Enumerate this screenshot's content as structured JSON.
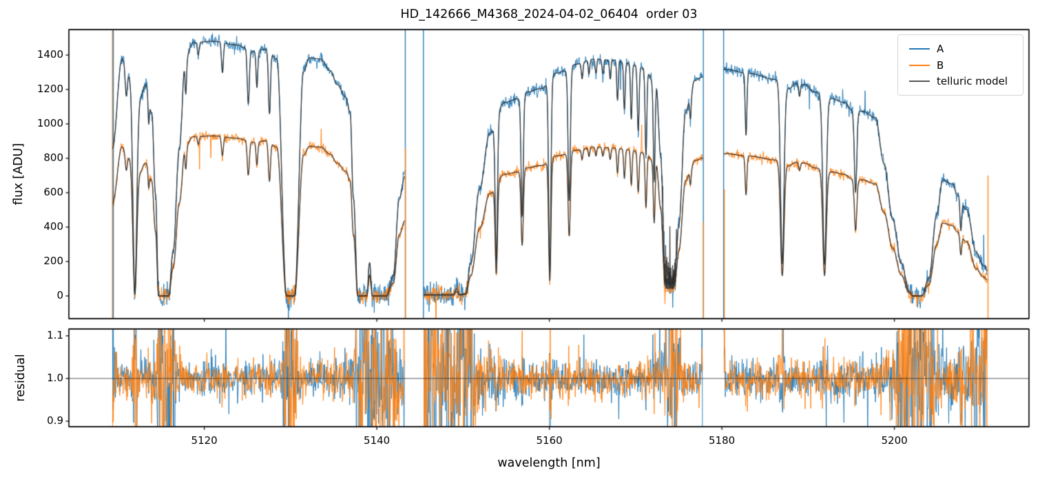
{
  "chart_data": {
    "type": "line",
    "title": "HD_142666_M4368_2024-04-02_06404  order 03",
    "xlabel": "wavelength [nm]",
    "ylabel_top": "flux [ADU]",
    "ylabel_bottom": "residual",
    "x_ticks": [
      5120,
      5140,
      5160,
      5180,
      5200
    ],
    "y_ticks_top": [
      0,
      200,
      400,
      600,
      800,
      1000,
      1200,
      1400
    ],
    "y_ticks_bottom": [
      0.9,
      1.0,
      1.1
    ],
    "xlim": [
      5104.3,
      5215.6
    ],
    "ylim_top": [
      -132,
      1548
    ],
    "ylim_bottom": [
      0.887,
      1.116
    ],
    "grid": false,
    "legend_position": "upper right",
    "series": [
      {
        "name": "A",
        "color": "#1f77b4",
        "continuum_scale_adu": 1480
      },
      {
        "name": "B",
        "color": "#ff7f0e",
        "continuum_scale_adu": 930
      },
      {
        "name": "telluric model",
        "color": "#555555"
      }
    ],
    "residual_reference_level": 1.0,
    "segments": [
      {
        "x_start": 5109.35,
        "x_end": 5143.25
      },
      {
        "x_start": 5145.45,
        "x_end": 5177.8
      },
      {
        "x_start": 5180.25,
        "x_end": 5210.8
      }
    ],
    "telluric_envelope": [
      [
        5109.35,
        0.58
      ],
      [
        5110.45,
        0.93
      ],
      [
        5111.3,
        0.87
      ],
      [
        5112.55,
        0.78
      ],
      [
        5113.2,
        0.83
      ],
      [
        5113.9,
        0.72
      ],
      [
        5114.35,
        0.4
      ],
      [
        5114.7,
        0.0
      ],
      [
        5115.85,
        0.0
      ],
      [
        5116.4,
        0.18
      ],
      [
        5117.1,
        0.58
      ],
      [
        5117.8,
        0.93
      ],
      [
        5118.7,
        0.995
      ],
      [
        5121.0,
        1.0
      ],
      [
        5124.0,
        0.985
      ],
      [
        5124.6,
        0.975
      ],
      [
        5125.6,
        0.96
      ],
      [
        5127.3,
        0.97
      ],
      [
        5128.4,
        0.93
      ],
      [
        5129.55,
        0.0
      ],
      [
        5130.45,
        0.0
      ],
      [
        5131.5,
        0.88
      ],
      [
        5132.2,
        0.935
      ],
      [
        5133.5,
        0.93
      ],
      [
        5134.6,
        0.885
      ],
      [
        5135.4,
        0.83
      ],
      [
        5136.4,
        0.78
      ],
      [
        5136.9,
        0.72
      ],
      [
        5137.3,
        0.38
      ],
      [
        5137.8,
        0.0
      ],
      [
        5138.85,
        0.0
      ],
      [
        5139.15,
        0.13
      ],
      [
        5139.5,
        0.0
      ],
      [
        5141.1,
        0.0
      ],
      [
        5141.9,
        0.08
      ],
      [
        5142.6,
        0.38
      ],
      [
        5143.25,
        0.47
      ],
      [
        5145.45,
        0.005
      ],
      [
        5148.9,
        0.005
      ],
      [
        5149.25,
        0.028
      ],
      [
        5149.6,
        0.005
      ],
      [
        5150.3,
        0.01
      ],
      [
        5150.9,
        0.13
      ],
      [
        5151.9,
        0.42
      ],
      [
        5153.1,
        0.64
      ],
      [
        5154.8,
        0.76
      ],
      [
        5156.4,
        0.775
      ],
      [
        5157.3,
        0.8
      ],
      [
        5159.1,
        0.815
      ],
      [
        5160.8,
        0.875
      ],
      [
        5162.0,
        0.885
      ],
      [
        5163.0,
        0.91
      ],
      [
        5165.2,
        0.93
      ],
      [
        5167.6,
        0.925
      ],
      [
        5169.0,
        0.915
      ],
      [
        5171.0,
        0.895
      ],
      [
        5172.4,
        0.82
      ],
      [
        5172.9,
        0.55
      ],
      [
        5173.4,
        0.04
      ],
      [
        5174.5,
        0.04
      ],
      [
        5175.0,
        0.28
      ],
      [
        5175.8,
        0.72
      ],
      [
        5176.3,
        0.77
      ],
      [
        5176.8,
        0.845
      ],
      [
        5177.8,
        0.86
      ],
      [
        5180.25,
        0.89
      ],
      [
        5183.0,
        0.875
      ],
      [
        5186.3,
        0.85
      ],
      [
        5187.8,
        0.815
      ],
      [
        5188.6,
        0.835
      ],
      [
        5189.6,
        0.83
      ],
      [
        5190.8,
        0.8
      ],
      [
        5192.7,
        0.775
      ],
      [
        5194.2,
        0.76
      ],
      [
        5195.1,
        0.73
      ],
      [
        5196.3,
        0.725
      ],
      [
        5197.8,
        0.7
      ],
      [
        5198.8,
        0.52
      ],
      [
        5199.8,
        0.3
      ],
      [
        5200.8,
        0.13
      ],
      [
        5201.7,
        0.02
      ],
      [
        5202.15,
        0.0
      ],
      [
        5203.15,
        0.0
      ],
      [
        5204.0,
        0.07
      ],
      [
        5204.9,
        0.32
      ],
      [
        5205.6,
        0.455
      ],
      [
        5206.7,
        0.44
      ],
      [
        5207.3,
        0.4
      ],
      [
        5208.35,
        0.34
      ],
      [
        5209.5,
        0.17
      ],
      [
        5210.3,
        0.12
      ],
      [
        5210.8,
        0.1
      ]
    ],
    "absorption_lines": [
      [
        5110.95,
        0.12,
        0.12
      ],
      [
        5111.95,
        0.99,
        0.22
      ],
      [
        5113.55,
        0.13,
        0.07
      ],
      [
        5117.85,
        0.15,
        0.09
      ],
      [
        5119.3,
        0.05,
        0.1
      ],
      [
        5122.1,
        0.12,
        0.11
      ],
      [
        5125.1,
        0.22,
        0.12
      ],
      [
        5126.1,
        0.15,
        0.1
      ],
      [
        5127.55,
        0.26,
        0.12
      ],
      [
        5153.85,
        0.8,
        0.13
      ],
      [
        5156.85,
        0.6,
        0.13
      ],
      [
        5160.05,
        0.89,
        0.13
      ],
      [
        5162.3,
        0.58,
        0.13
      ],
      [
        5163.8,
        0.07,
        0.09
      ],
      [
        5164.6,
        0.06,
        0.09
      ],
      [
        5165.4,
        0.06,
        0.09
      ],
      [
        5166.2,
        0.06,
        0.09
      ],
      [
        5167.05,
        0.08,
        0.09
      ],
      [
        5167.9,
        0.17,
        0.09
      ],
      [
        5168.7,
        0.2,
        0.09
      ],
      [
        5169.5,
        0.24,
        0.09
      ],
      [
        5170.3,
        0.28,
        0.1
      ],
      [
        5171.2,
        0.38,
        0.1
      ],
      [
        5172.15,
        0.45,
        0.1
      ],
      [
        5176.35,
        0.1,
        0.08
      ],
      [
        5182.8,
        0.28,
        0.1
      ],
      [
        5187.0,
        0.85,
        0.2
      ],
      [
        5189.0,
        0.06,
        0.1
      ],
      [
        5191.9,
        0.84,
        0.2
      ],
      [
        5195.5,
        0.44,
        0.14
      ],
      [
        5207.7,
        0.33,
        0.1
      ]
    ],
    "model_noise_region": [
      5173.05,
      5174.75
    ],
    "edge_lines": [
      {
        "x": 5109.35,
        "series": "B",
        "full": true
      },
      {
        "x": 5109.45,
        "series": "A",
        "full": true
      },
      {
        "x": 5143.3,
        "series": "A",
        "full": true
      },
      {
        "x": 5143.32,
        "series": "B",
        "flux_to": 860
      },
      {
        "x": 5145.4,
        "series": "A",
        "full": true
      },
      {
        "x": 5177.85,
        "series": "A",
        "full": true
      },
      {
        "x": 5177.87,
        "series": "B",
        "flux_to": 430
      },
      {
        "x": 5180.2,
        "series": "A",
        "full": true
      },
      {
        "x": 5180.28,
        "series": "B",
        "flux_to": 620
      },
      {
        "x": 5210.85,
        "series": "B",
        "flux_to": 700
      }
    ],
    "noise": {
      "flux_sigma_A": 19,
      "flux_sigma_B": 22,
      "spike_prob": 0.007,
      "spike_scale": 7,
      "residual_sigma": 0.021,
      "residual_low_flux_boost_max": 5.8,
      "model_noise_sigma": 85
    }
  }
}
